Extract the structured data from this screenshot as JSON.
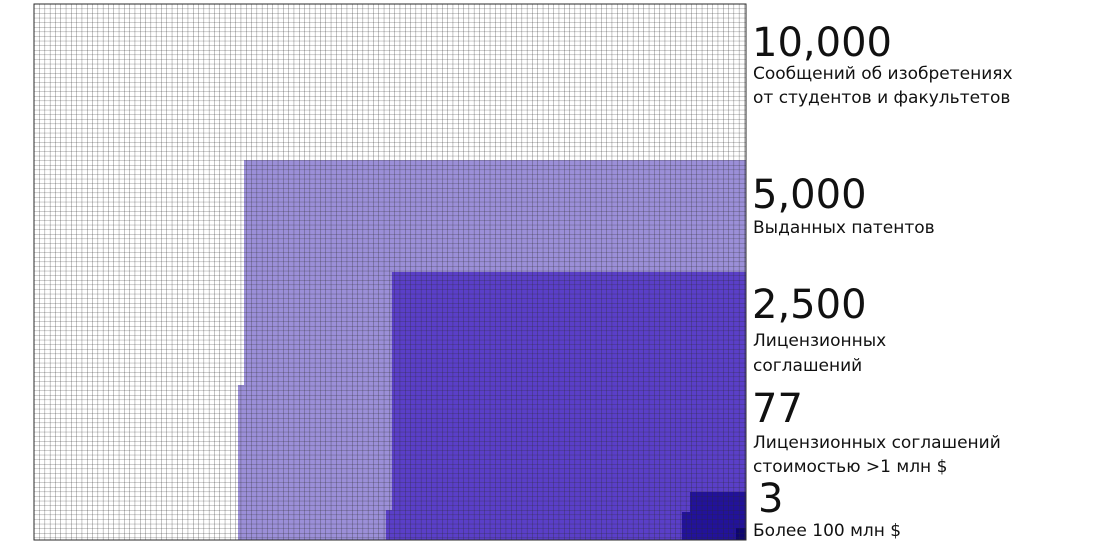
{
  "chart_data": {
    "type": "waffle",
    "unit": "one square = one item",
    "series": [
      {
        "value": "10,000",
        "count": 10000,
        "label_lines": [
          "Сообщений об изобретениях",
          "от студентов и факультетов"
        ],
        "color": "#ffffff"
      },
      {
        "value": "5,000",
        "count": 5000,
        "label_lines": [
          "Выданных патентов"
        ],
        "color": "#9b8fd8"
      },
      {
        "value": "2,500",
        "count": 2500,
        "label_lines": [
          "Лицензионных",
          "соглашений"
        ],
        "color": "#5a3fc8"
      },
      {
        "value": "77",
        "count": 77,
        "label_lines": [
          "Лицензионных соглашений",
          "стоимостью >1 млн $"
        ],
        "color": "#22129a"
      },
      {
        "value": "3",
        "count": 3,
        "label_lines": [
          "Более 100 млн $"
        ],
        "color": "#0d0570"
      }
    ]
  }
}
